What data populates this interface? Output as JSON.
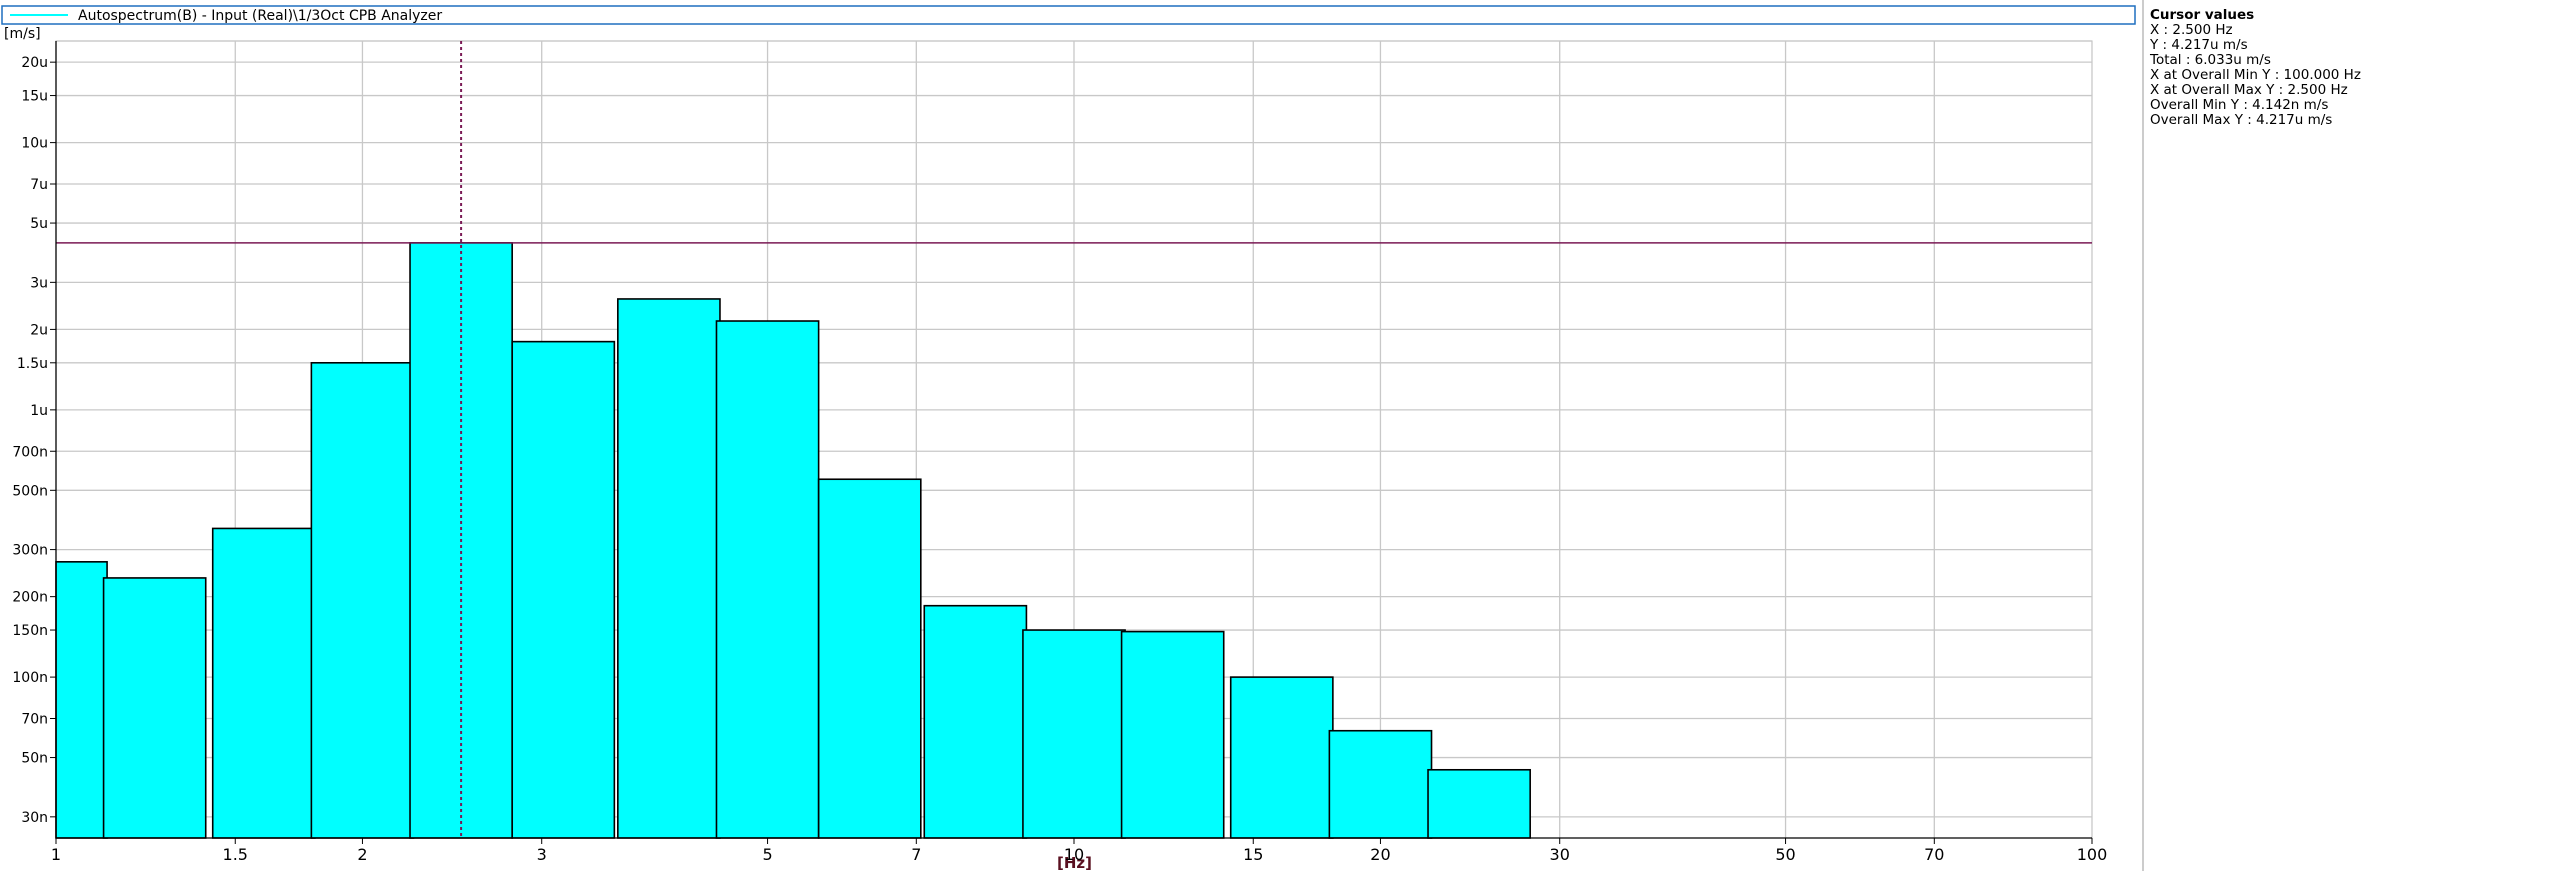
{
  "legend": {
    "label": "Autospectrum(B) - Input (Real)\\1/3Oct CPB Analyzer",
    "color": "#00ffff"
  },
  "cursor_panel": {
    "title": "Cursor values",
    "lines": [
      "X : 2.500 Hz",
      "Y : 4.217u m/s",
      "Total : 6.033u m/s",
      "X at Overall Min Y : 100.000 Hz",
      "X at Overall Max Y : 2.500 Hz",
      "Overall Min Y : 4.142n m/s",
      "Overall Max Y : 4.217u m/s"
    ]
  },
  "chart_data": {
    "type": "bar",
    "title": "",
    "xlabel": "[Hz]",
    "ylabel": "[m/s]",
    "x_scale": "log",
    "y_scale": "log",
    "xlim": [
      1,
      100
    ],
    "ylim": [
      2.5e-08,
      2.4e-05
    ],
    "grid": true,
    "x_ticks": [
      {
        "value": 1,
        "label": "1"
      },
      {
        "value": 1.5,
        "label": "1.5"
      },
      {
        "value": 2,
        "label": "2"
      },
      {
        "value": 3,
        "label": "3"
      },
      {
        "value": 5,
        "label": "5"
      },
      {
        "value": 7,
        "label": "7"
      },
      {
        "value": 10,
        "label": "10"
      },
      {
        "value": 15,
        "label": "15"
      },
      {
        "value": 20,
        "label": "20"
      },
      {
        "value": 30,
        "label": "30"
      },
      {
        "value": 50,
        "label": "50"
      },
      {
        "value": 70,
        "label": "70"
      },
      {
        "value": 100,
        "label": "100"
      }
    ],
    "y_ticks": [
      {
        "value": 3e-08,
        "label": "30n"
      },
      {
        "value": 5e-08,
        "label": "50n"
      },
      {
        "value": 7e-08,
        "label": "70n"
      },
      {
        "value": 1e-07,
        "label": "100n"
      },
      {
        "value": 1.5e-07,
        "label": "150n"
      },
      {
        "value": 2e-07,
        "label": "200n"
      },
      {
        "value": 3e-07,
        "label": "300n"
      },
      {
        "value": 5e-07,
        "label": "500n"
      },
      {
        "value": 7e-07,
        "label": "700n"
      },
      {
        "value": 1e-06,
        "label": "1u"
      },
      {
        "value": 1.5e-06,
        "label": "1.5u"
      },
      {
        "value": 2e-06,
        "label": "2u"
      },
      {
        "value": 3e-06,
        "label": "3u"
      },
      {
        "value": 5e-06,
        "label": "5u"
      },
      {
        "value": 7e-06,
        "label": "7u"
      },
      {
        "value": 1e-05,
        "label": "10u"
      },
      {
        "value": 1.5e-05,
        "label": "15u"
      },
      {
        "value": 2e-05,
        "label": "20u"
      }
    ],
    "bars": [
      {
        "center": 1.0,
        "value": 2.7e-07
      },
      {
        "center": 1.25,
        "value": 2.35e-07
      },
      {
        "center": 1.6,
        "value": 3.6e-07
      },
      {
        "center": 2.0,
        "value": 1.5e-06
      },
      {
        "center": 2.5,
        "value": 4.217e-06
      },
      {
        "center": 3.15,
        "value": 1.8e-06
      },
      {
        "center": 4.0,
        "value": 2.6e-06
      },
      {
        "center": 5.0,
        "value": 2.15e-06
      },
      {
        "center": 6.3,
        "value": 5.5e-07
      },
      {
        "center": 8.0,
        "value": 1.85e-07
      },
      {
        "center": 10.0,
        "value": 1.5e-07
      },
      {
        "center": 12.5,
        "value": 1.48e-07
      },
      {
        "center": 16.0,
        "value": 1e-07
      },
      {
        "center": 20.0,
        "value": 6.3e-08
      },
      {
        "center": 25.0,
        "value": 4.5e-08
      }
    ],
    "bar_color": "#00ffff",
    "cursor": {
      "x": 2.5,
      "y": 4.217e-06,
      "color": "#7a1a55"
    }
  }
}
